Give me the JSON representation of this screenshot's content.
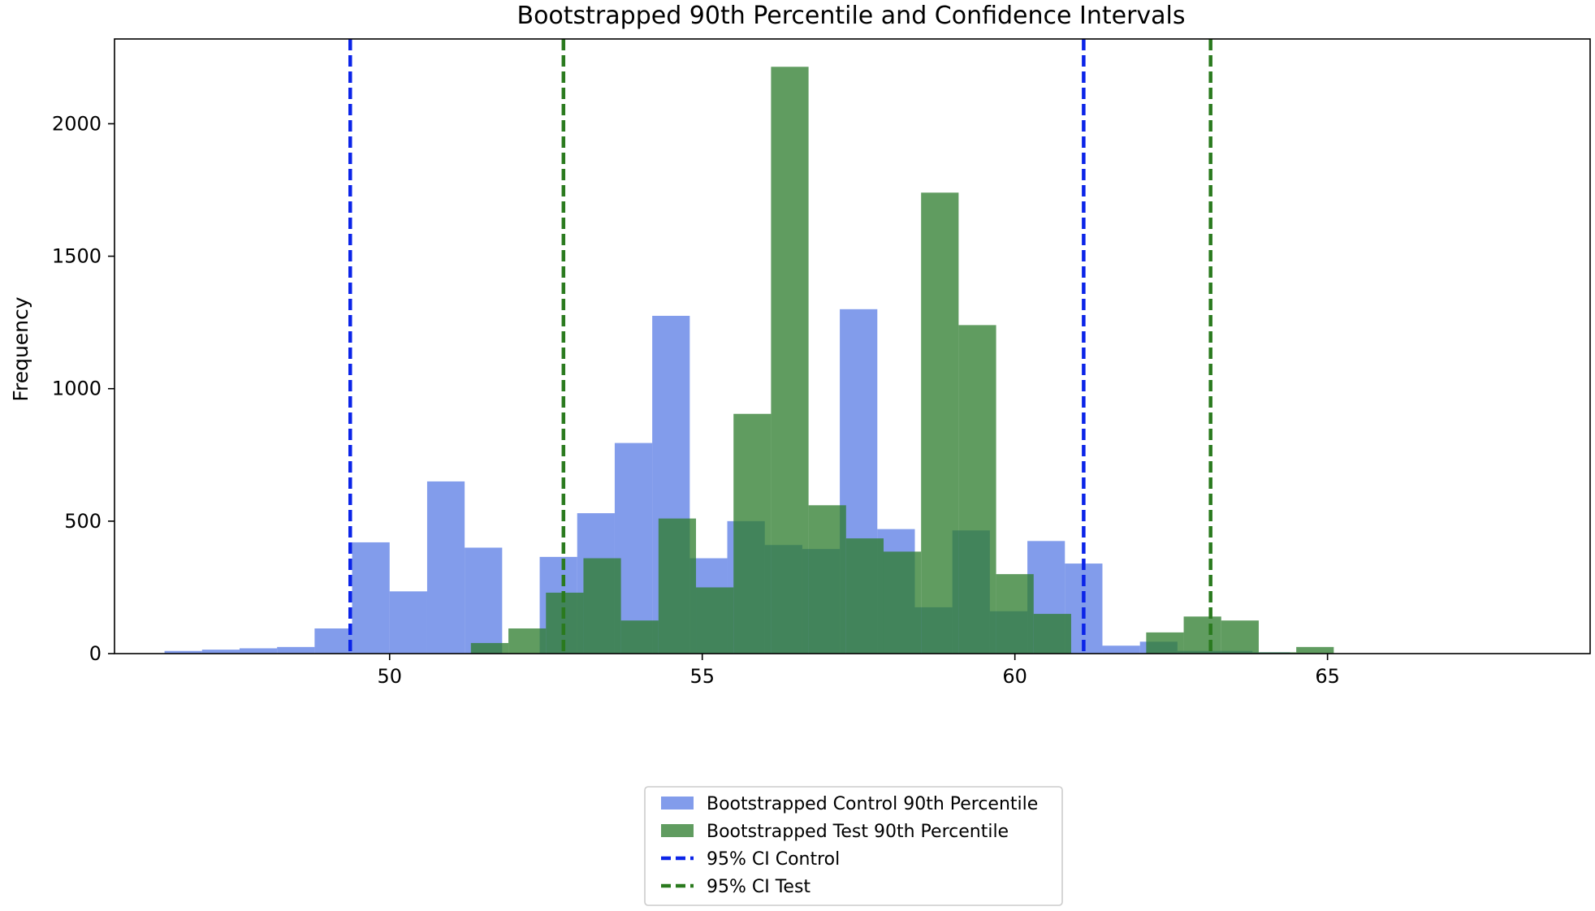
{
  "chart_data": {
    "type": "histogram",
    "title": "Bootstrapped 90th Percentile and Confidence Intervals",
    "xlabel": "",
    "ylabel": "Frequency",
    "xlim": [
      45.6,
      69.2
    ],
    "ylim": [
      0,
      2320
    ],
    "xticks": [
      50,
      55,
      60,
      65
    ],
    "yticks": [
      0,
      500,
      1000,
      1500,
      2000
    ],
    "grid": false,
    "legend_position": "lower-center-outside",
    "series": [
      {
        "name": "Bootstrapped Control 90th Percentile",
        "color": "#4169e1",
        "opacity": 0.66,
        "bins": [
          {
            "x0": 46.4,
            "x1": 47.0,
            "count": 10
          },
          {
            "x0": 47.0,
            "x1": 47.6,
            "count": 15
          },
          {
            "x0": 47.6,
            "x1": 48.2,
            "count": 20
          },
          {
            "x0": 48.2,
            "x1": 48.8,
            "count": 25
          },
          {
            "x0": 48.8,
            "x1": 49.4,
            "count": 95
          },
          {
            "x0": 49.4,
            "x1": 50.0,
            "count": 420
          },
          {
            "x0": 50.0,
            "x1": 50.6,
            "count": 235
          },
          {
            "x0": 50.6,
            "x1": 51.2,
            "count": 650
          },
          {
            "x0": 51.2,
            "x1": 51.8,
            "count": 400
          },
          {
            "x0": 51.8,
            "x1": 52.4,
            "count": 0
          },
          {
            "x0": 52.4,
            "x1": 53.0,
            "count": 365
          },
          {
            "x0": 53.0,
            "x1": 53.6,
            "count": 530
          },
          {
            "x0": 53.6,
            "x1": 54.2,
            "count": 795
          },
          {
            "x0": 54.2,
            "x1": 54.8,
            "count": 1275
          },
          {
            "x0": 54.8,
            "x1": 55.4,
            "count": 360
          },
          {
            "x0": 55.4,
            "x1": 56.0,
            "count": 500
          },
          {
            "x0": 56.0,
            "x1": 56.6,
            "count": 410
          },
          {
            "x0": 56.6,
            "x1": 57.2,
            "count": 395
          },
          {
            "x0": 57.2,
            "x1": 57.8,
            "count": 1300
          },
          {
            "x0": 57.8,
            "x1": 58.4,
            "count": 470
          },
          {
            "x0": 58.4,
            "x1": 59.0,
            "count": 175
          },
          {
            "x0": 59.0,
            "x1": 59.6,
            "count": 465
          },
          {
            "x0": 59.6,
            "x1": 60.2,
            "count": 160
          },
          {
            "x0": 60.2,
            "x1": 60.8,
            "count": 425
          },
          {
            "x0": 60.8,
            "x1": 61.4,
            "count": 340
          },
          {
            "x0": 61.4,
            "x1": 62.0,
            "count": 30
          },
          {
            "x0": 62.0,
            "x1": 62.6,
            "count": 45
          },
          {
            "x0": 62.6,
            "x1": 63.2,
            "count": 10
          },
          {
            "x0": 63.2,
            "x1": 63.8,
            "count": 10
          },
          {
            "x0": 63.8,
            "x1": 64.4,
            "count": 5
          }
        ]
      },
      {
        "name": "Bootstrapped Test 90th Percentile",
        "color": "#2e7d2e",
        "opacity": 0.76,
        "bins": [
          {
            "x0": 51.3,
            "x1": 51.9,
            "count": 40
          },
          {
            "x0": 51.9,
            "x1": 52.5,
            "count": 95
          },
          {
            "x0": 52.5,
            "x1": 53.1,
            "count": 230
          },
          {
            "x0": 53.1,
            "x1": 53.7,
            "count": 360
          },
          {
            "x0": 53.7,
            "x1": 54.3,
            "count": 125
          },
          {
            "x0": 54.3,
            "x1": 54.9,
            "count": 510
          },
          {
            "x0": 54.9,
            "x1": 55.5,
            "count": 250
          },
          {
            "x0": 55.5,
            "x1": 56.1,
            "count": 905
          },
          {
            "x0": 56.1,
            "x1": 56.7,
            "count": 2215
          },
          {
            "x0": 56.7,
            "x1": 57.3,
            "count": 560
          },
          {
            "x0": 57.3,
            "x1": 57.9,
            "count": 435
          },
          {
            "x0": 57.9,
            "x1": 58.5,
            "count": 385
          },
          {
            "x0": 58.5,
            "x1": 59.1,
            "count": 1740
          },
          {
            "x0": 59.1,
            "x1": 59.7,
            "count": 1240
          },
          {
            "x0": 59.7,
            "x1": 60.3,
            "count": 300
          },
          {
            "x0": 60.3,
            "x1": 60.9,
            "count": 150
          },
          {
            "x0": 60.9,
            "x1": 61.5,
            "count": 0
          },
          {
            "x0": 61.5,
            "x1": 62.1,
            "count": 0
          },
          {
            "x0": 62.1,
            "x1": 62.7,
            "count": 80
          },
          {
            "x0": 62.7,
            "x1": 63.3,
            "count": 140
          },
          {
            "x0": 63.3,
            "x1": 63.9,
            "count": 125
          },
          {
            "x0": 63.9,
            "x1": 64.5,
            "count": 5
          },
          {
            "x0": 64.5,
            "x1": 65.1,
            "count": 25
          }
        ]
      }
    ],
    "vlines": [
      {
        "name": "95% CI Control",
        "color": "#0b24e8",
        "x": [
          49.37,
          61.1
        ]
      },
      {
        "name": "95% CI Test",
        "color": "#2a7a1e",
        "x": [
          52.78,
          63.13
        ]
      }
    ],
    "legend": [
      {
        "kind": "patch",
        "label": "Bootstrapped Control 90th Percentile",
        "color": "#4169e1",
        "opacity": 0.66
      },
      {
        "kind": "patch",
        "label": "Bootstrapped Test 90th Percentile",
        "color": "#2e7d2e",
        "opacity": 0.76
      },
      {
        "kind": "dashed-line",
        "label": "95% CI Control",
        "color": "#0b24e8"
      },
      {
        "kind": "dashed-line",
        "label": "95% CI Test",
        "color": "#2a7a1e"
      }
    ]
  }
}
